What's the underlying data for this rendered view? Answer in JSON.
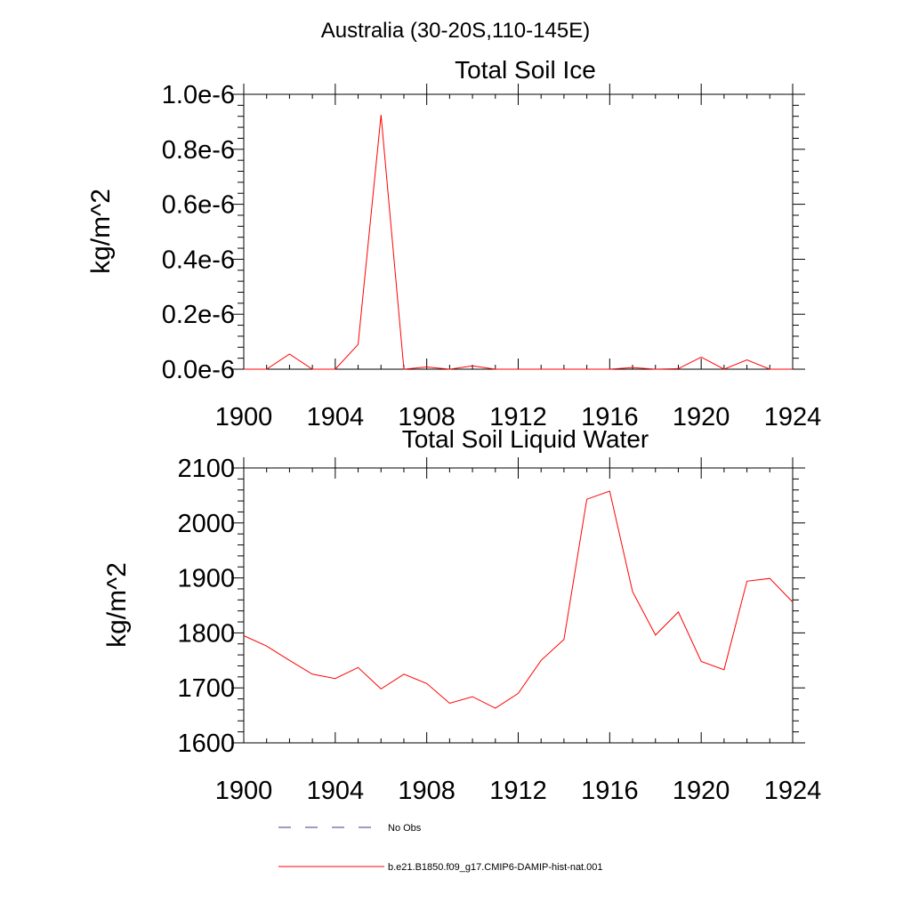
{
  "figure": {
    "suptitle": "Australia (30-20S,110-145E)"
  },
  "colors": {
    "model_line": "#ff0000",
    "obs_line": "#39398a",
    "axes": "#000000"
  },
  "legend": {
    "placement": "bottom-center",
    "entries": [
      {
        "label": "No Obs",
        "style": "dashed",
        "color": "#39398a"
      },
      {
        "label": "b.e21.B1850.f09_g17.CMIP6-DAMIP-hist-nat.001",
        "style": "solid",
        "color": "#ff0000"
      }
    ]
  },
  "chart_data": [
    {
      "type": "line",
      "title": "Total Soil Ice",
      "xlabel": "",
      "ylabel": "kg/m^2",
      "xlim": [
        1900,
        1924
      ],
      "ylim": [
        0,
        1e-06
      ],
      "xticks": [
        1900,
        1904,
        1908,
        1912,
        1916,
        1920,
        1924
      ],
      "xtick_labels": [
        "1900",
        "1904",
        "1908",
        "1912",
        "1916",
        "1920",
        "1924"
      ],
      "yticks": [
        0,
        2e-07,
        4e-07,
        6e-07,
        8e-07,
        1e-06
      ],
      "ytick_labels": [
        "0.0e-6",
        "0.2e-6",
        "0.4e-6",
        "0.6e-6",
        "0.8e-6",
        "1.0e-6"
      ],
      "grid": false,
      "series": [
        {
          "name": "b.e21.B1850.f09_g17.CMIP6-DAMIP-hist-nat.001",
          "color": "#ff0000",
          "x": [
            1900,
            1901,
            1902,
            1903,
            1904,
            1905,
            1906,
            1907,
            1908,
            1909,
            1910,
            1911,
            1912,
            1913,
            1914,
            1915,
            1916,
            1917,
            1918,
            1919,
            1920,
            1921,
            1922,
            1923,
            1924
          ],
          "y": [
            0,
            0,
            5.5e-08,
            0,
            0,
            9e-08,
            9.25e-07,
            0,
            8e-09,
            0,
            1.2e-08,
            0,
            0,
            0,
            0,
            0,
            0,
            6e-09,
            0,
            2e-09,
            4.4e-08,
            0,
            3.4e-08,
            0,
            0
          ]
        }
      ]
    },
    {
      "type": "line",
      "title": "Total Soil Liquid Water",
      "xlabel": "",
      "ylabel": "kg/m^2",
      "xlim": [
        1900,
        1924
      ],
      "ylim": [
        1600,
        2100
      ],
      "xticks": [
        1900,
        1904,
        1908,
        1912,
        1916,
        1920,
        1924
      ],
      "xtick_labels": [
        "1900",
        "1904",
        "1908",
        "1912",
        "1916",
        "1920",
        "1924"
      ],
      "yticks": [
        1600,
        1700,
        1800,
        1900,
        2000,
        2100
      ],
      "ytick_labels": [
        "1600",
        "1700",
        "1800",
        "1900",
        "2000",
        "2100"
      ],
      "grid": false,
      "series": [
        {
          "name": "b.e21.B1850.f09_g17.CMIP6-DAMIP-hist-nat.001",
          "color": "#ff0000",
          "x": [
            1900,
            1901,
            1902,
            1903,
            1904,
            1905,
            1906,
            1907,
            1908,
            1909,
            1910,
            1911,
            1912,
            1913,
            1914,
            1915,
            1916,
            1917,
            1918,
            1919,
            1920,
            1921,
            1922,
            1923,
            1924
          ],
          "y": [
            1795,
            1776,
            1750,
            1725,
            1717,
            1737,
            1698,
            1725,
            1708,
            1672,
            1684,
            1663,
            1690,
            1750,
            1788,
            2043,
            2058,
            1875,
            1796,
            1838,
            1748,
            1733,
            1894,
            1899,
            1856
          ]
        }
      ]
    }
  ]
}
